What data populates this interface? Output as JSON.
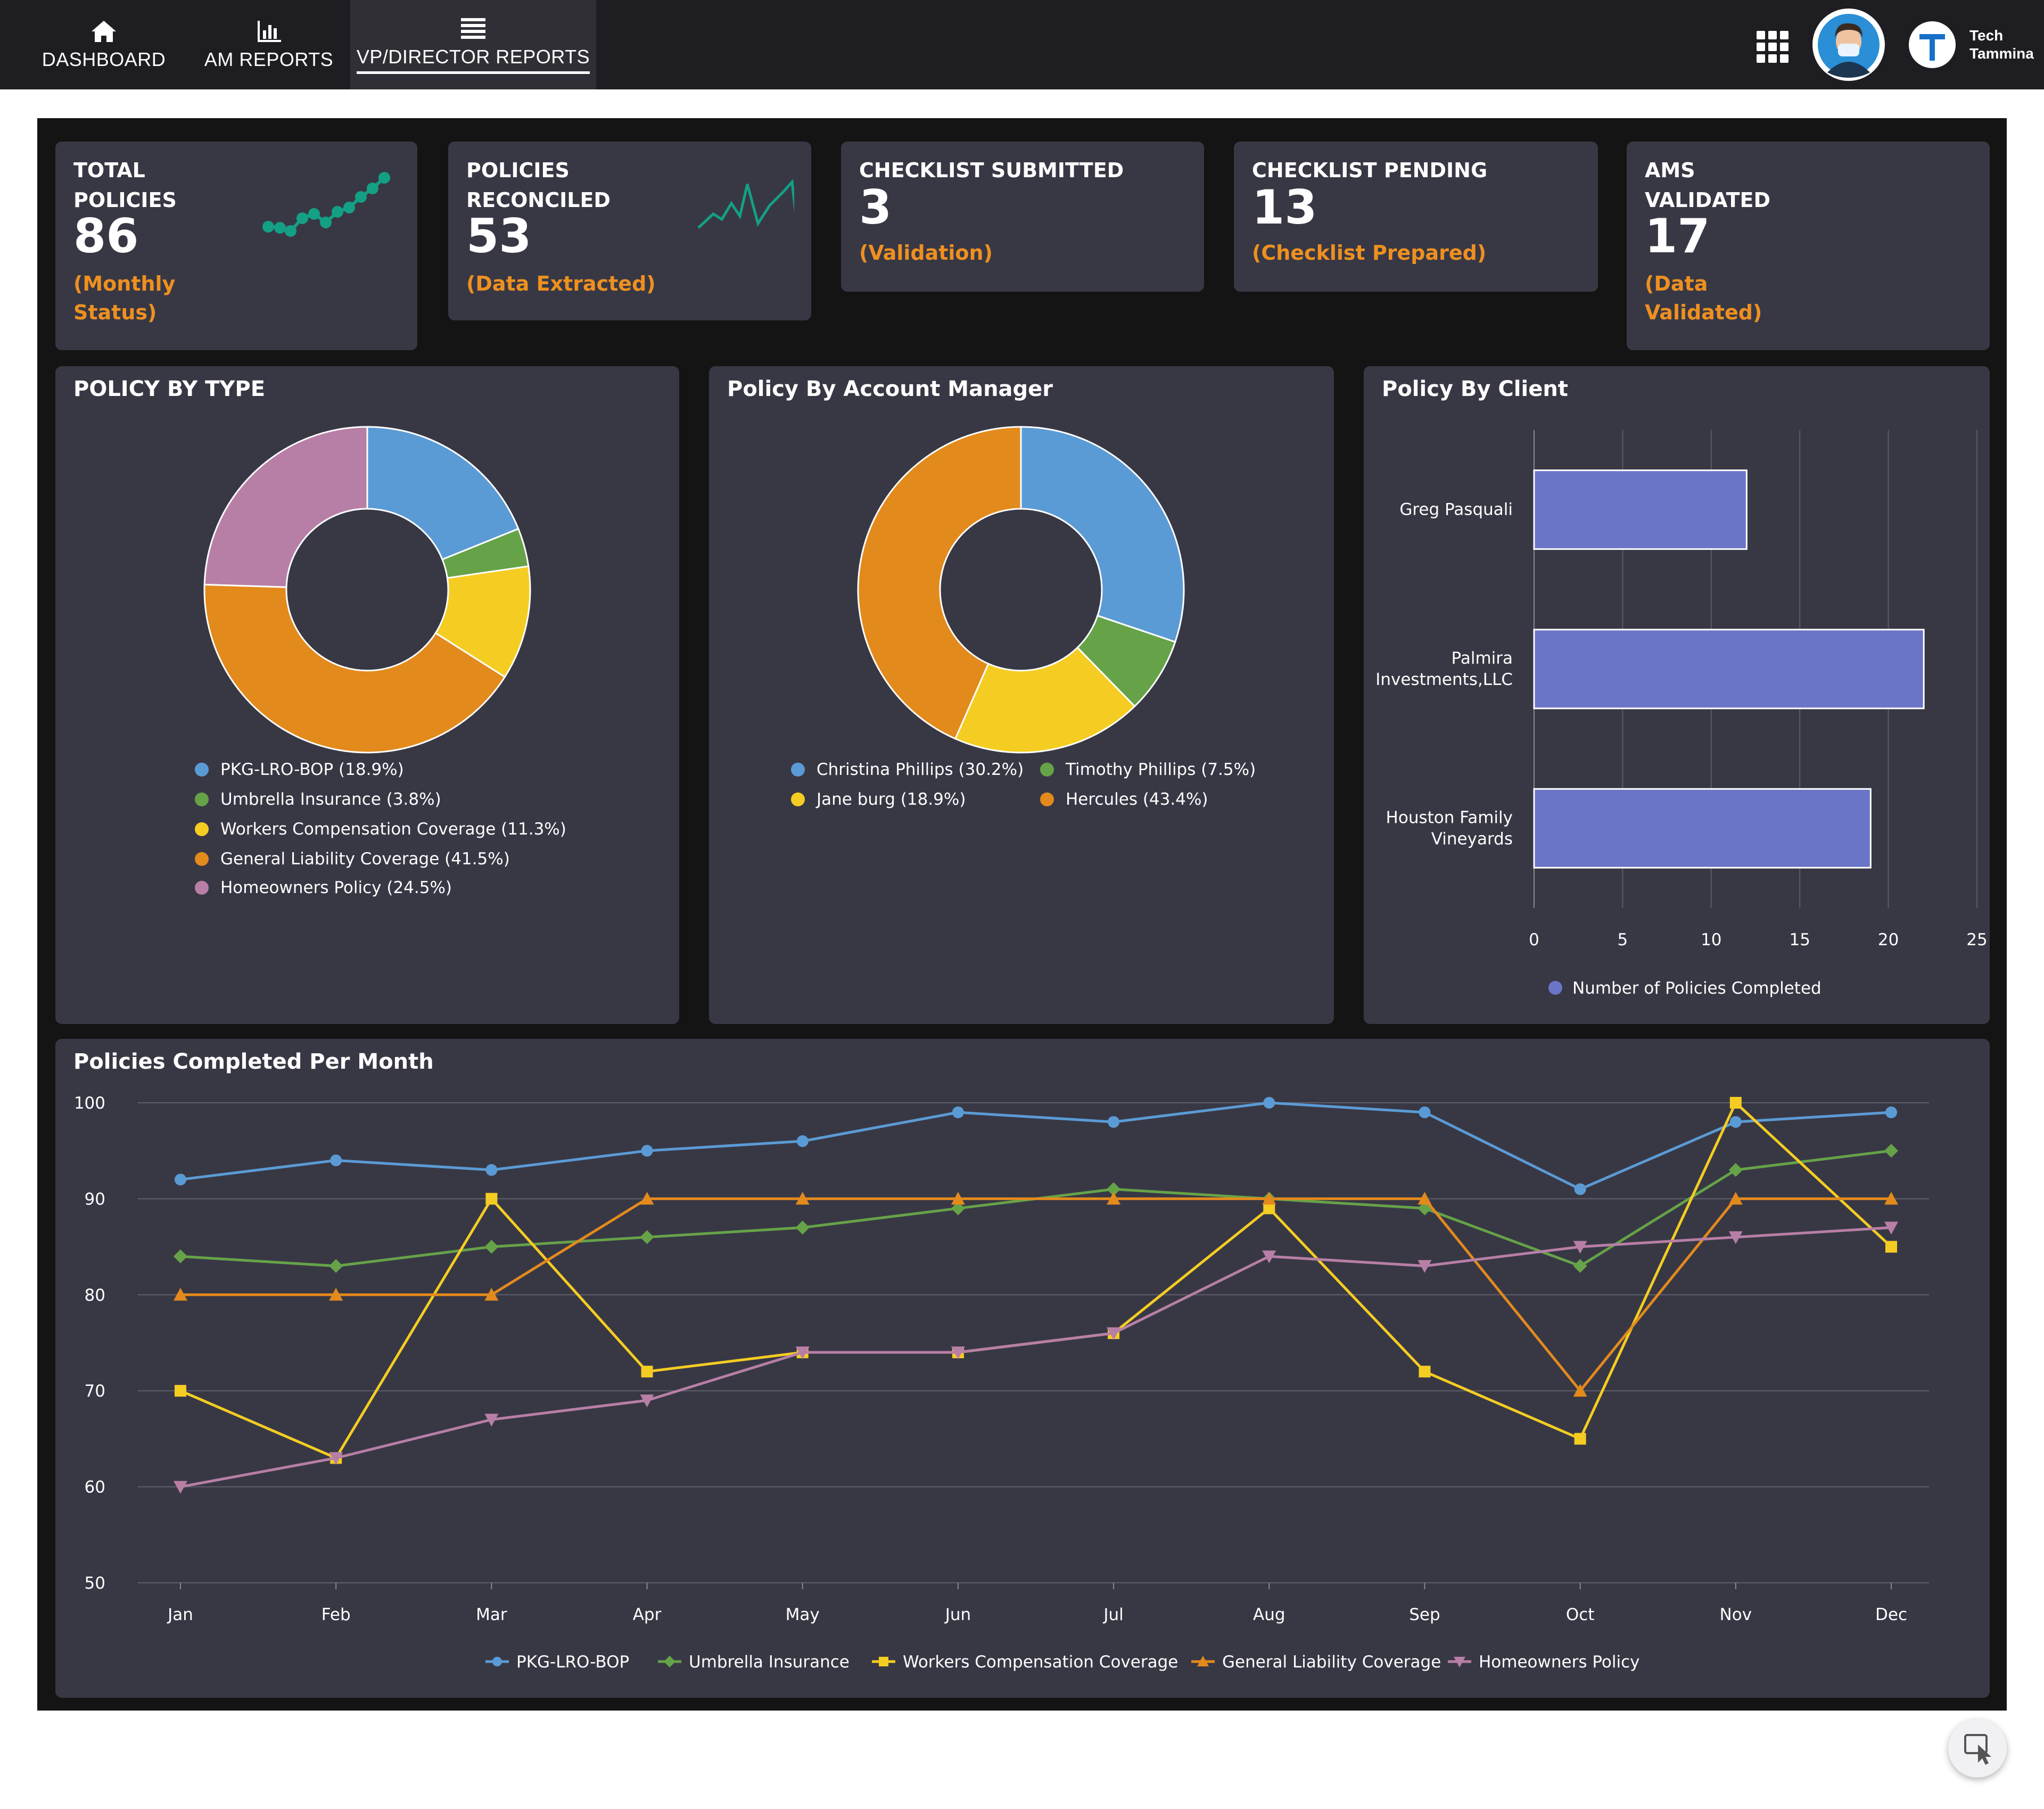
{
  "nav": {
    "items": [
      {
        "label": "DASHBOARD",
        "icon": "home-icon"
      },
      {
        "label": "AM REPORTS",
        "icon": "bar-chart-icon"
      },
      {
        "label": "VP/DIRECTOR REPORTS",
        "icon": "menu-icon",
        "active": true
      }
    ],
    "brand_line1": "Tech",
    "brand_line2": "Tammina"
  },
  "kpis": [
    {
      "title": "TOTAL\nPOLICIES",
      "value": "86",
      "sub": "(Monthly\nStatus)"
    },
    {
      "title": "POLICIES\nRECONCILED",
      "value": "53",
      "sub": "(Data Extracted)"
    },
    {
      "title": "CHECKLIST SUBMITTED",
      "value": "3",
      "sub": "(Validation)"
    },
    {
      "title": "CHECKLIST PENDING",
      "value": "13",
      "sub": "(Checklist Prepared)"
    },
    {
      "title": "AMS\nVALIDATED",
      "value": "17",
      "sub": "(Data\nValidated)"
    }
  ],
  "colors": {
    "blue": "#5b9bd5",
    "green": "#66a348",
    "yellow": "#f5cd22",
    "orange": "#e38a1c",
    "pink": "#b87fa6",
    "bar": "#6a75c8",
    "accent": "#ee9020",
    "spark": "#14a085"
  },
  "chart_data": [
    {
      "type": "pie",
      "title": "POLICY BY TYPE",
      "labels": [
        "PKG-LRO-BOP (18.9%)",
        "Umbrella Insurance (3.8%)",
        "Workers Compensation Coverage (11.3%)",
        "General Liability Coverage (41.5%)",
        "Homeowners Policy (24.5%)"
      ],
      "values": [
        18.9,
        3.8,
        11.3,
        41.5,
        24.5
      ],
      "colors": [
        "#5b9bd5",
        "#66a348",
        "#f5cd22",
        "#e38a1c",
        "#b87fa6"
      ],
      "donut": true,
      "legend": "bottom"
    },
    {
      "type": "pie",
      "title": "Policy By Account Manager",
      "labels": [
        "Christina Phillips (30.2%)",
        "Timothy Phillips (7.5%)",
        "Jane burg (18.9%)",
        "Hercules (43.4%)"
      ],
      "values": [
        30.2,
        7.5,
        18.9,
        43.4
      ],
      "colors": [
        "#5b9bd5",
        "#66a348",
        "#f5cd22",
        "#e38a1c"
      ],
      "donut": true,
      "legend": "bottom"
    },
    {
      "type": "bar",
      "orientation": "horizontal",
      "title": "Policy By Client",
      "categories": [
        "Greg Pasquali",
        "Palmira Investments,LLC",
        "Houston Family Vineyards"
      ],
      "series": [
        {
          "name": "Number of Policies Completed",
          "values": [
            12,
            22,
            19
          ]
        }
      ],
      "xticks": [
        "0",
        "5",
        "10",
        "15",
        "20",
        "25"
      ],
      "xlim": [
        0,
        25
      ],
      "grid": true,
      "legend": "bottom"
    },
    {
      "type": "line",
      "title": "Policies Completed Per Month",
      "categories": [
        "Jan",
        "Feb",
        "Mar",
        "Apr",
        "May",
        "Jun",
        "Jul",
        "Aug",
        "Sep",
        "Oct",
        "Nov",
        "Dec"
      ],
      "yticks": [
        "100",
        "90",
        "80",
        "70",
        "60",
        "50"
      ],
      "ylim": [
        50,
        100
      ],
      "grid": true,
      "legend": "bottom",
      "series": [
        {
          "name": "PKG-LRO-BOP",
          "color": "#5b9bd5",
          "marker": "circle",
          "values": [
            92,
            94,
            93,
            95,
            96,
            99,
            98,
            100,
            99,
            91,
            98,
            99
          ]
        },
        {
          "name": "Umbrella Insurance",
          "color": "#66a348",
          "marker": "diamond",
          "values": [
            84,
            83,
            85,
            86,
            87,
            89,
            91,
            90,
            89,
            83,
            93,
            95
          ]
        },
        {
          "name": "Workers Compensation Coverage",
          "color": "#f5cd22",
          "marker": "square",
          "values": [
            70,
            63,
            90,
            72,
            74,
            74,
            76,
            89,
            72,
            65,
            100,
            85
          ]
        },
        {
          "name": "General Liability Coverage",
          "color": "#e38a1c",
          "marker": "triangle",
          "values": [
            80,
            80,
            80,
            90,
            90,
            90,
            90,
            90,
            90,
            70,
            90,
            90
          ]
        },
        {
          "name": "Homeowners Policy",
          "color": "#b87fa6",
          "marker": "triangle-down",
          "values": [
            60,
            63,
            67,
            69,
            74,
            74,
            76,
            84,
            83,
            85,
            86,
            87
          ]
        }
      ]
    }
  ]
}
